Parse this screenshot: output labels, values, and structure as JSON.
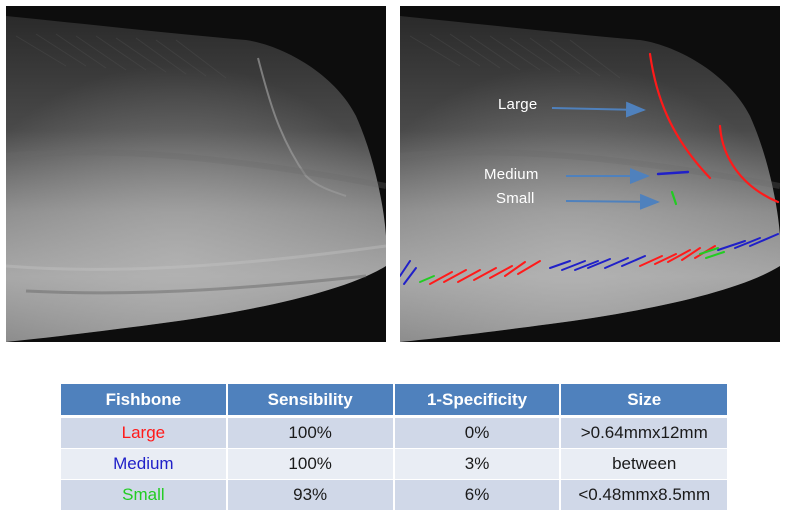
{
  "annotations": {
    "large": "Large",
    "medium": "Medium",
    "small": "Small"
  },
  "colors": {
    "large": "#ff1a1a",
    "medium": "#2020c8",
    "small": "#22cc22",
    "header_bg": "#4f81bd",
    "arrow": "#4f81bd"
  },
  "table": {
    "headers": [
      "Fishbone",
      "Sensibility",
      "1-Specificity",
      "Size"
    ],
    "rows": [
      {
        "fishbone": "Large",
        "sensibility": "100%",
        "specificity": "0%",
        "size": ">0.64mmx12mm"
      },
      {
        "fishbone": "Medium",
        "sensibility": "100%",
        "specificity": "3%",
        "size": "between"
      },
      {
        "fishbone": "Small",
        "sensibility": "93%",
        "specificity": "6%",
        "size": "<0.48mmx8.5mm"
      }
    ]
  }
}
